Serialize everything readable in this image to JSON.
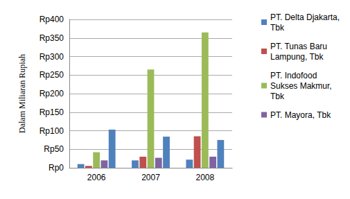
{
  "chart_data": {
    "type": "bar",
    "y_label": "Dalam Miliaran Rupiah",
    "categories": [
      "2006",
      "2007",
      "2008"
    ],
    "series": [
      {
        "name": "PT. Delta Djakarta, Tbk",
        "color": "#4F81BD",
        "values": [
          10,
          20,
          22
        ]
      },
      {
        "name": "PT. Tunas Baru Lampung, Tbk",
        "color": "#C0504D",
        "values": [
          5,
          30,
          85
        ]
      },
      {
        "name": "PT. Indofood Sukses Makmur, Tbk",
        "color": "#9BBB59",
        "values": [
          42,
          265,
          365
        ]
      },
      {
        "name": "PT. Mayora, Tbk",
        "color": "#8064A2",
        "values": [
          20,
          27,
          30
        ]
      },
      {
        "name": null,
        "color": "#4F81BD",
        "values": [
          103,
          84,
          75
        ]
      }
    ],
    "ylim": [
      0,
      400
    ],
    "yticks": [
      {
        "value": 0,
        "label": "Rp0"
      },
      {
        "value": 50,
        "label": "Rp50"
      },
      {
        "value": 100,
        "label": "Rp100"
      },
      {
        "value": 150,
        "label": "Rp150"
      },
      {
        "value": 200,
        "label": "Rp200"
      },
      {
        "value": 250,
        "label": "Rp250"
      },
      {
        "value": 300,
        "label": "Rp300"
      },
      {
        "value": 350,
        "label": "Rp350"
      },
      {
        "value": 400,
        "label": "Rp400"
      }
    ],
    "grid": true,
    "legend": "right"
  }
}
